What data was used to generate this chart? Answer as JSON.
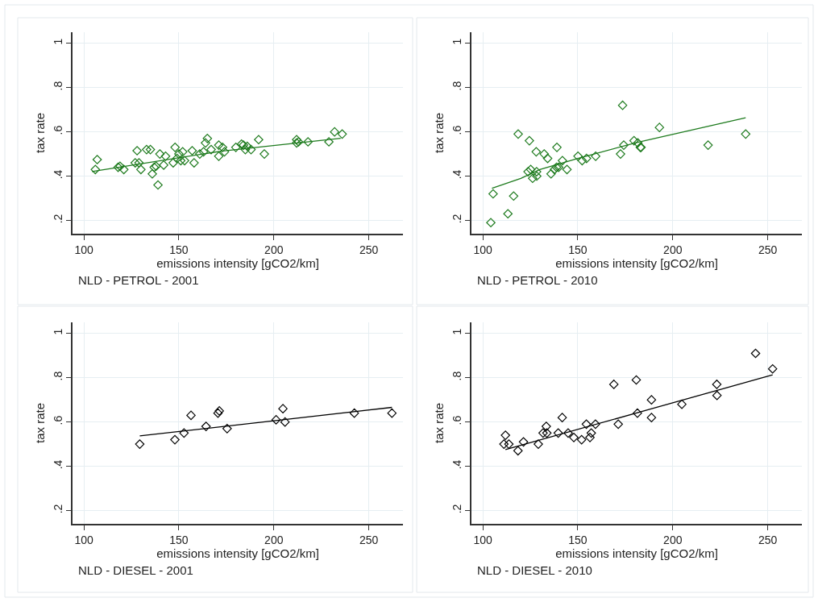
{
  "chart_data": [
    {
      "type": "scatter",
      "xlabel": "emissions intensity [gCO2/km]",
      "ylabel": "tax rate",
      "annotations": [
        "NLD - PETROL - 2001"
      ],
      "xlim": [
        94,
        268
      ],
      "ylim": [
        0.14,
        1.05
      ],
      "xticks": [
        100,
        150,
        200,
        250
      ],
      "yticks": [
        {
          "value": 0.2,
          "label": ".2"
        },
        {
          "value": 0.4,
          "label": ".4"
        },
        {
          "value": 0.6,
          "label": ".6"
        },
        {
          "value": 0.8,
          "label": ".8"
        },
        1
      ],
      "grid": true,
      "series": [
        {
          "marker": "diamond",
          "color": "#1e7b1e",
          "x": [
            106,
            107,
            118,
            119,
            121,
            127,
            128,
            129,
            130,
            133,
            135,
            136,
            137,
            138,
            139,
            140,
            142,
            143,
            147,
            148,
            149,
            150,
            151,
            152,
            153,
            157,
            158,
            161,
            163,
            164,
            165,
            167,
            171,
            171,
            173,
            174,
            180,
            183,
            184,
            185,
            186,
            188,
            192,
            195,
            212,
            212,
            213,
            218,
            229,
            232,
            236
          ],
          "values": [
            0.43,
            0.475,
            0.44,
            0.445,
            0.43,
            0.46,
            0.515,
            0.46,
            0.43,
            0.52,
            0.52,
            0.41,
            0.44,
            0.445,
            0.36,
            0.5,
            0.45,
            0.49,
            0.46,
            0.53,
            0.48,
            0.5,
            0.47,
            0.51,
            0.47,
            0.515,
            0.46,
            0.5,
            0.51,
            0.55,
            0.57,
            0.52,
            0.49,
            0.54,
            0.53,
            0.51,
            0.53,
            0.545,
            0.54,
            0.52,
            0.535,
            0.52,
            0.565,
            0.5,
            0.55,
            0.565,
            0.555,
            0.555,
            0.555,
            0.6,
            0.59
          ]
        },
        {
          "type": "line",
          "marker": "none",
          "color": "#1e7b1e",
          "x": [
            104.2,
            172.2,
            235.2
          ],
          "values": [
            0.421,
            0.513,
            0.571
          ]
        }
      ]
    },
    {
      "type": "scatter",
      "xlabel": "emissions intensity [gCO2/km]",
      "ylabel": "tax rate",
      "annotations": [
        "NLD - PETROL - 2010"
      ],
      "xlim": [
        94,
        268
      ],
      "ylim": [
        0.14,
        1.05
      ],
      "xticks": [
        100,
        150,
        200,
        250
      ],
      "yticks": [
        {
          "value": 0.2,
          "label": ".2"
        },
        {
          "value": 0.4,
          "label": ".4"
        },
        {
          "value": 0.6,
          "label": ".6"
        },
        {
          "value": 0.8,
          "label": ".8"
        },
        1
      ],
      "grid": true,
      "series": [
        {
          "marker": "diamond",
          "color": "#1e7b1e",
          "x": [
            104.2,
            105.4,
            113.2,
            116.2,
            118.6,
            124.5,
            123.8,
            125.2,
            126.2,
            128.3,
            128.4,
            128.1,
            132.3,
            134.1,
            139.0,
            135.9,
            137.7,
            138.8,
            139.9,
            141.9,
            144.3,
            150.1,
            152.3,
            154.6,
            159.4,
            172.5,
            173.6,
            174.2,
            179.6,
            181.6,
            182.9,
            183.3,
            193.0,
            218.6,
            238.4
          ],
          "values": [
            0.19,
            0.32,
            0.23,
            0.31,
            0.59,
            0.56,
            0.42,
            0.43,
            0.39,
            0.42,
            0.4,
            0.51,
            0.5,
            0.48,
            0.53,
            0.41,
            0.43,
            0.44,
            0.44,
            0.47,
            0.43,
            0.49,
            0.47,
            0.48,
            0.49,
            0.5,
            0.72,
            0.54,
            0.56,
            0.55,
            0.53,
            0.53,
            0.62,
            0.54,
            0.59
          ]
        },
        {
          "type": "line",
          "marker": "none",
          "color": "#1e7b1e",
          "x": [
            104.8,
            120,
            130,
            150,
            181,
            238.4
          ],
          "values": [
            0.345,
            0.39,
            0.43,
            0.48,
            0.552,
            0.664
          ]
        }
      ]
    },
    {
      "type": "scatter",
      "xlabel": "emissions intensity [gCO2/km]",
      "ylabel": "tax rate",
      "annotations": [
        "NLD - DIESEL - 2001"
      ],
      "xlim": [
        94,
        268
      ],
      "ylim": [
        0.14,
        1.05
      ],
      "xticks": [
        100,
        150,
        200,
        250
      ],
      "yticks": [
        {
          "value": 0.2,
          "label": ".2"
        },
        {
          "value": 0.4,
          "label": ".4"
        },
        {
          "value": 0.6,
          "label": ".6"
        },
        {
          "value": 0.8,
          "label": ".8"
        },
        1
      ],
      "grid": true,
      "series": [
        {
          "marker": "diamond",
          "color": "#000000",
          "x": [
            129.4,
            147.9,
            152.7,
            156.4,
            164.3,
            170.6,
            171.3,
            175.4,
            201.2,
            204.8,
            205.9,
            242.4,
            262.2
          ],
          "values": [
            0.5,
            0.52,
            0.55,
            0.63,
            0.58,
            0.64,
            0.65,
            0.57,
            0.61,
            0.66,
            0.6,
            0.64,
            0.64
          ]
        },
        {
          "type": "line",
          "marker": "none",
          "color": "#000000",
          "x": [
            129.4,
            262.2
          ],
          "values": [
            0.537,
            0.666
          ]
        }
      ]
    },
    {
      "type": "scatter",
      "xlabel": "emissions intensity [gCO2/km]",
      "ylabel": "tax rate",
      "annotations": [
        "NLD - DIESEL - 2010"
      ],
      "xlim": [
        94,
        268
      ],
      "ylim": [
        0.14,
        1.05
      ],
      "xticks": [
        100,
        150,
        200,
        250
      ],
      "yticks": [
        {
          "value": 0.2,
          "label": ".2"
        },
        {
          "value": 0.4,
          "label": ".4"
        },
        {
          "value": 0.6,
          "label": ".6"
        },
        {
          "value": 0.8,
          "label": ".8"
        },
        1
      ],
      "grid": true,
      "series": [
        {
          "marker": "diamond",
          "color": "#000000",
          "x": [
            111.9,
            111.1,
            113.7,
            118.5,
            121.4,
            129.2,
            131.7,
            133.4,
            133.7,
            139.7,
            141.8,
            144.9,
            147.9,
            152.0,
            154.5,
            156.4,
            157.1,
            159.3,
            169.0,
            171.3,
            180.8,
            181.4,
            188.8,
            188.8,
            204.8,
            223.2,
            223.3,
            243.6,
            252.6
          ],
          "values": [
            0.54,
            0.5,
            0.5,
            0.47,
            0.51,
            0.5,
            0.55,
            0.58,
            0.55,
            0.55,
            0.62,
            0.55,
            0.53,
            0.52,
            0.59,
            0.53,
            0.55,
            0.59,
            0.77,
            0.59,
            0.79,
            0.64,
            0.7,
            0.62,
            0.68,
            0.77,
            0.72,
            0.91,
            0.84
          ]
        },
        {
          "type": "line",
          "marker": "none",
          "color": "#000000",
          "x": [
            111.9,
            252.6
          ],
          "values": [
            0.475,
            0.813
          ]
        }
      ]
    }
  ]
}
